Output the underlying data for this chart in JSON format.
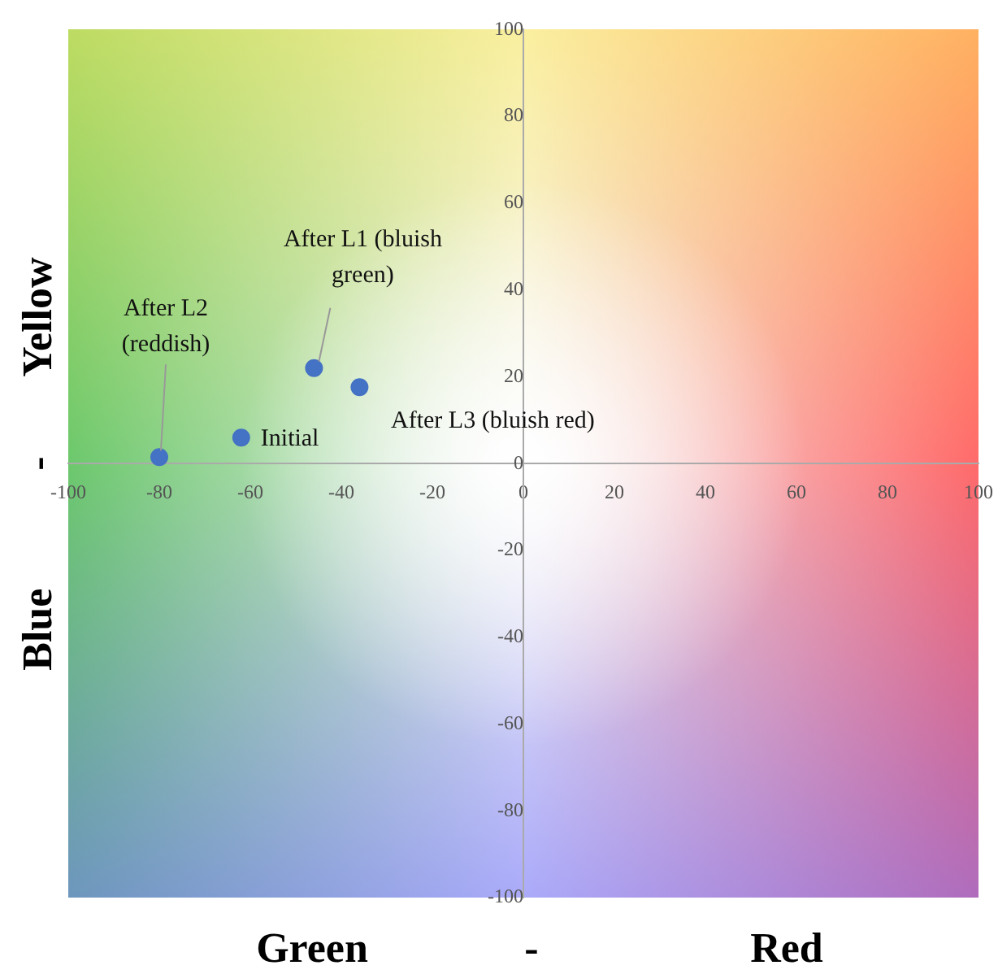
{
  "chart_data": {
    "type": "scatter",
    "xlabel": "Green - Red",
    "ylabel": "Yellow - Blue",
    "x": [
      -62,
      -46,
      -80,
      -36
    ],
    "series": [
      {
        "color": "#4472c4",
        "values": [
          6,
          22,
          1.5,
          17.6
        ]
      }
    ],
    "xlim": [
      -100,
      100
    ],
    "ylim": [
      -100,
      100
    ],
    "xticks": [
      -100,
      -80,
      -60,
      -40,
      -20,
      0,
      20,
      40,
      60,
      80,
      100
    ],
    "yticks": [
      -100,
      -80,
      -60,
      -40,
      -20,
      0,
      20,
      40,
      60,
      80,
      100
    ],
    "grid": false,
    "legend": false,
    "marker": "circle",
    "annotations": [
      {
        "text": "Initial",
        "x": -62,
        "y": 6
      },
      {
        "text": "After L1 (bluish green)",
        "x": -46,
        "y": 22
      },
      {
        "text": "After L2 (reddish)",
        "x": -80,
        "y": 1.5
      },
      {
        "text": "After L3 (bluish red)",
        "x": -36,
        "y": 17.6
      }
    ]
  }
}
